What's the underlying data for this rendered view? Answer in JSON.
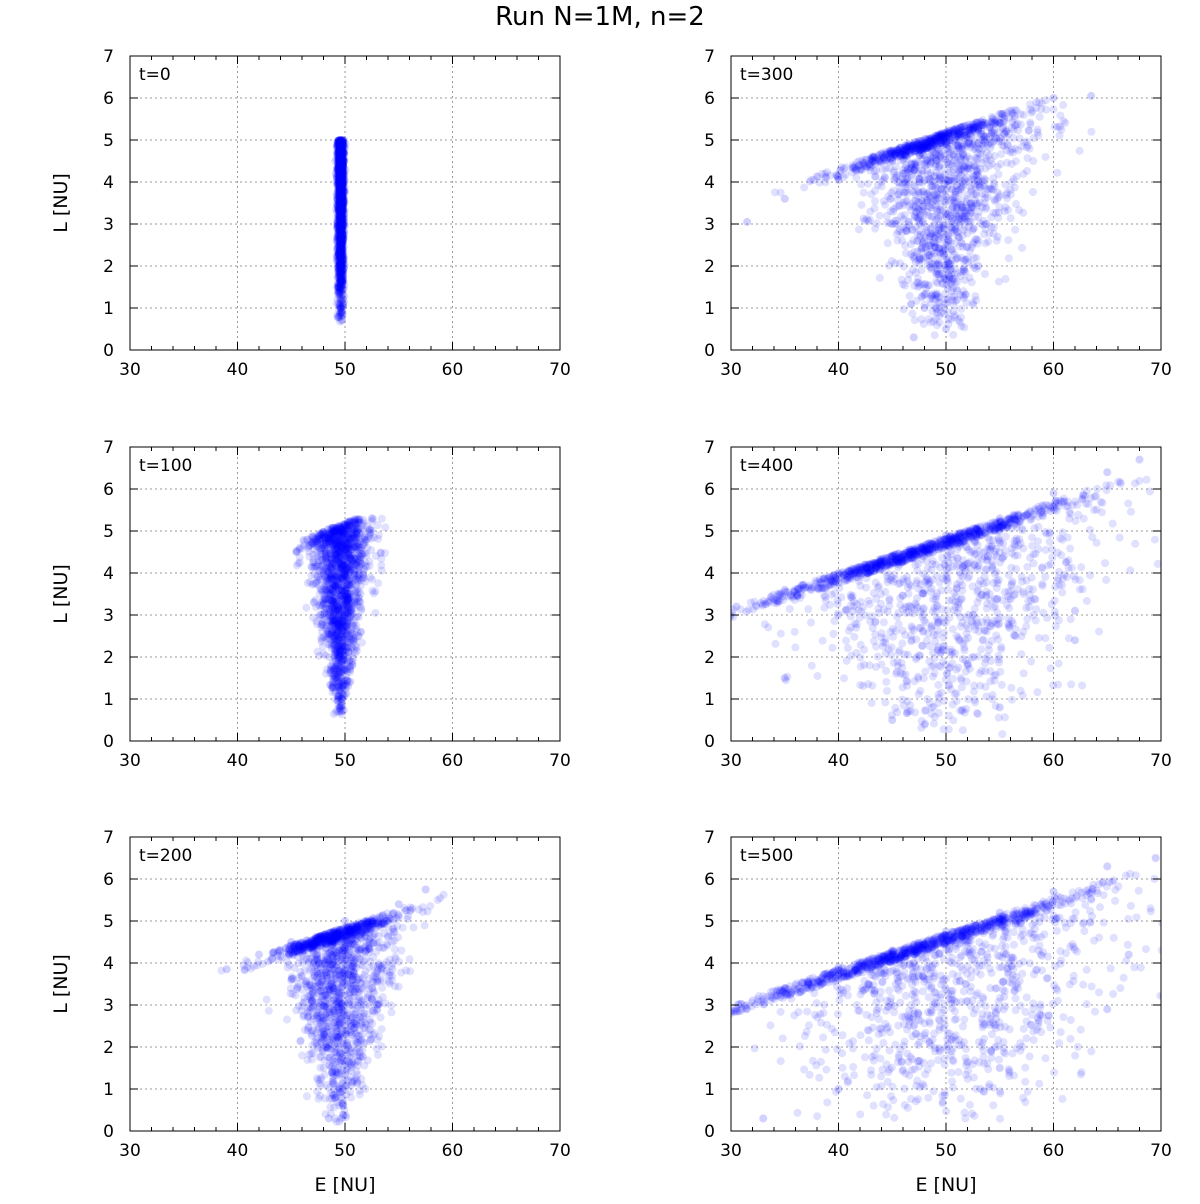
{
  "figure": {
    "title": "Run N=1M, n=2"
  },
  "chart_data": [
    {
      "type": "scatter",
      "annotation": "t=0",
      "xlabel": "",
      "ylabel": "L [NU]",
      "xlim": [
        30,
        70
      ],
      "ylim": [
        0,
        7
      ],
      "xticks": [
        "30",
        "40",
        "50",
        "60",
        "70"
      ],
      "yticks": [
        "0",
        "1",
        "2",
        "3",
        "4",
        "5",
        "6",
        "7"
      ],
      "grid": true,
      "color": "#0000ff",
      "distribution": {
        "e_center": 49.6,
        "l_min": 0.6,
        "l_max": 5.0,
        "e_spread_at_top": 0.35,
        "e_spread_at_bottom": 0.35,
        "slope": 0.0,
        "intercept": 5.0
      },
      "points": [
        [
          49.6,
          5.0
        ],
        [
          49.5,
          4.5
        ],
        [
          49.6,
          4.0
        ],
        [
          49.5,
          3.5
        ],
        [
          49.6,
          3.0
        ],
        [
          49.5,
          2.5
        ],
        [
          49.6,
          2.0
        ],
        [
          49.6,
          1.5
        ],
        [
          49.6,
          1.0
        ],
        [
          49.7,
          0.7
        ]
      ]
    },
    {
      "type": "scatter",
      "annotation": "t=300",
      "xlabel": "",
      "ylabel": "",
      "xlim": [
        30,
        70
      ],
      "ylim": [
        0,
        7
      ],
      "xticks": [
        "30",
        "40",
        "50",
        "60",
        "70"
      ],
      "yticks": [
        "0",
        "1",
        "2",
        "3",
        "4",
        "5",
        "6",
        "7"
      ],
      "grid": true,
      "color": "#0000ff",
      "distribution": {
        "e_center": 49.5,
        "l_min": 0.3,
        "l_max": 6.05,
        "e_spread_at_top": 11.0,
        "e_spread_at_bottom": 2.5,
        "slope": 0.085,
        "intercept": 0.95
      },
      "points": [
        [
          31.5,
          3.05
        ],
        [
          35,
          3.6
        ],
        [
          40,
          4.05
        ],
        [
          45,
          4.5
        ],
        [
          50,
          4.9
        ],
        [
          55,
          5.4
        ],
        [
          60,
          6.0
        ],
        [
          63.5,
          6.05
        ],
        [
          48,
          1.0
        ],
        [
          50,
          0.5
        ],
        [
          47,
          0.3
        ],
        [
          53,
          2.0
        ],
        [
          45,
          3.0
        ]
      ]
    },
    {
      "type": "scatter",
      "annotation": "t=100",
      "xlabel": "",
      "ylabel": "L [NU]",
      "xlim": [
        30,
        70
      ],
      "ylim": [
        0,
        7
      ],
      "xticks": [
        "30",
        "40",
        "50",
        "60",
        "70"
      ],
      "yticks": [
        "0",
        "1",
        "2",
        "3",
        "4",
        "5",
        "6",
        "7"
      ],
      "grid": true,
      "color": "#0000ff",
      "distribution": {
        "e_center": 49.5,
        "l_min": 0.6,
        "l_max": 5.3,
        "e_spread_at_top": 3.6,
        "e_spread_at_bottom": 0.7,
        "slope": 0.1,
        "intercept": 0.2
      },
      "points": [
        [
          45.5,
          4.5
        ],
        [
          47,
          4.85
        ],
        [
          49,
          5.0
        ],
        [
          51,
          5.15
        ],
        [
          52.5,
          5.3
        ],
        [
          50,
          3.5
        ],
        [
          49.5,
          2.0
        ],
        [
          49.7,
          1.0
        ],
        [
          49.6,
          0.7
        ]
      ]
    },
    {
      "type": "scatter",
      "annotation": "t=400",
      "xlabel": "",
      "ylabel": "",
      "xlim": [
        30,
        70
      ],
      "ylim": [
        0,
        7
      ],
      "xticks": [
        "30",
        "40",
        "50",
        "60",
        "70"
      ],
      "yticks": [
        "0",
        "1",
        "2",
        "3",
        "4",
        "5",
        "6",
        "7"
      ],
      "grid": true,
      "color": "#0000ff",
      "distribution": {
        "e_center": 49.0,
        "l_min": 0.1,
        "l_max": 6.7,
        "e_spread_at_top": 20.0,
        "e_spread_at_bottom": 9.0,
        "slope": 0.085,
        "intercept": 0.6
      },
      "points": [
        [
          30.5,
          3.2
        ],
        [
          35,
          3.6
        ],
        [
          40,
          4.0
        ],
        [
          45,
          4.4
        ],
        [
          50,
          4.9
        ],
        [
          55,
          5.3
        ],
        [
          60,
          5.9
        ],
        [
          65,
          6.4
        ],
        [
          68,
          6.7
        ],
        [
          35,
          1.5
        ],
        [
          45,
          0.5
        ],
        [
          55,
          0.8
        ],
        [
          62,
          2.4
        ],
        [
          62,
          3.1
        ]
      ]
    },
    {
      "type": "scatter",
      "annotation": "t=200",
      "xlabel": "E [NU]",
      "ylabel": "L [NU]",
      "xlim": [
        30,
        70
      ],
      "ylim": [
        0,
        7
      ],
      "xticks": [
        "30",
        "40",
        "50",
        "60",
        "70"
      ],
      "yticks": [
        "0",
        "1",
        "2",
        "3",
        "4",
        "5",
        "6",
        "7"
      ],
      "grid": true,
      "color": "#0000ff",
      "distribution": {
        "e_center": 49.5,
        "l_min": 0.2,
        "l_max": 5.8,
        "e_spread_at_top": 7.5,
        "e_spread_at_bottom": 1.5,
        "slope": 0.085,
        "intercept": 0.6
      },
      "points": [
        [
          39,
          3.85
        ],
        [
          42,
          4.2
        ],
        [
          45,
          4.5
        ],
        [
          50,
          5.0
        ],
        [
          55,
          5.4
        ],
        [
          57.5,
          5.75
        ],
        [
          49.5,
          1.0
        ],
        [
          48.5,
          0.3
        ],
        [
          53,
          3.0
        ]
      ]
    },
    {
      "type": "scatter",
      "annotation": "t=500",
      "xlabel": "E [NU]",
      "ylabel": "",
      "xlim": [
        30,
        70
      ],
      "ylim": [
        0,
        7
      ],
      "xticks": [
        "30",
        "40",
        "50",
        "60",
        "70"
      ],
      "yticks": [
        "0",
        "1",
        "2",
        "3",
        "4",
        "5",
        "6",
        "7"
      ],
      "grid": true,
      "color": "#0000ff",
      "distribution": {
        "e_center": 49.0,
        "l_min": 0.1,
        "l_max": 6.7,
        "e_spread_at_top": 22.0,
        "e_spread_at_bottom": 11.0,
        "slope": 0.085,
        "intercept": 0.45
      },
      "points": [
        [
          30.5,
          2.9
        ],
        [
          35,
          3.4
        ],
        [
          40,
          3.9
        ],
        [
          45,
          4.3
        ],
        [
          50,
          4.75
        ],
        [
          55,
          5.2
        ],
        [
          60,
          5.7
        ],
        [
          65,
          6.3
        ],
        [
          69.5,
          6.5
        ],
        [
          33,
          0.3
        ],
        [
          40,
          1.0
        ],
        [
          55,
          1.5
        ],
        [
          65,
          2.9
        ],
        [
          67,
          4.2
        ]
      ]
    }
  ]
}
